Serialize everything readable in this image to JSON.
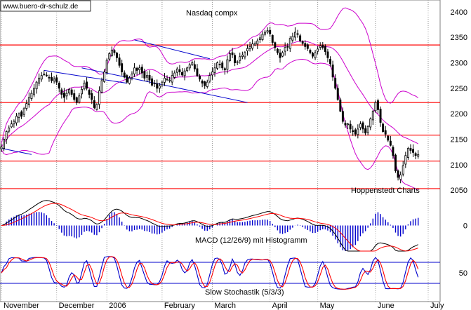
{
  "watermark": "www.buero-dr-schulz.de",
  "chart_data": {
    "type": "candlestick",
    "title": "Nasdaq compx",
    "source_label": "Hoppenstedt Charts",
    "colors": {
      "candle": "#000000",
      "bollinger": "#cc00cc",
      "horizontal_levels": "#ff0000",
      "trendline": "#0000cc",
      "macd_line": "#000000",
      "signal_line": "#ff0000",
      "histogram": "#0000cc",
      "stoch_k": "#0000cc",
      "stoch_d": "#ff0000",
      "stoch_bands": "#0000cc",
      "grid": "#999999"
    },
    "price_panel": {
      "ylim": [
        2035,
        2415
      ],
      "yticks": [
        2050,
        2100,
        2150,
        2200,
        2250,
        2300,
        2350,
        2400
      ],
      "grid": "vertical dotted at month starts",
      "horizontal_levels": [
        2335,
        2222,
        2158,
        2107,
        2053
      ],
      "trendlines": [
        {
          "from": {
            "day": 0,
            "value": 2132
          },
          "to": {
            "day": 12,
            "value": 2120
          }
        },
        {
          "from": {
            "day": 17,
            "value": 2285
          },
          "to": {
            "day": 50,
            "value": 2260
          }
        },
        {
          "from": {
            "day": 32,
            "value": 2290
          },
          "to": {
            "day": 98,
            "value": 2222
          }
        },
        {
          "from": {
            "day": 53,
            "value": 2345
          },
          "to": {
            "day": 83,
            "value": 2308
          }
        }
      ]
    },
    "macd_panel": {
      "label": "MACD (12/26/9) mit Histogramm",
      "yticks": [
        0
      ],
      "ylim": [
        -35,
        35
      ]
    },
    "stoch_panel": {
      "label": "Slow Stochastik (5/3/3)",
      "yticks": [
        50
      ],
      "bands": [
        80,
        20
      ],
      "ylim": [
        0,
        100
      ]
    },
    "x_axis": {
      "months": [
        "November",
        "December",
        "2006",
        "February",
        "March",
        "April",
        "May",
        "June",
        "July"
      ],
      "month_start_days": [
        0,
        22,
        42,
        64,
        84,
        107,
        126,
        149,
        170
      ],
      "total_days": 171
    },
    "close_series": [
      2135,
      2150,
      2165,
      2172,
      2180,
      2185,
      2195,
      2200,
      2195,
      2210,
      2220,
      2232,
      2240,
      2250,
      2262,
      2270,
      2275,
      2278,
      2275,
      2270,
      2265,
      2268,
      2262,
      2250,
      2238,
      2232,
      2240,
      2248,
      2238,
      2228,
      2222,
      2235,
      2248,
      2260,
      2250,
      2238,
      2228,
      2212,
      2218,
      2245,
      2265,
      2282,
      2305,
      2318,
      2325,
      2320,
      2310,
      2295,
      2282,
      2272,
      2262,
      2270,
      2278,
      2290,
      2285,
      2290,
      2280,
      2270,
      2275,
      2266,
      2256,
      2260,
      2250,
      2255,
      2262,
      2270,
      2268,
      2266,
      2275,
      2280,
      2288,
      2282,
      2276,
      2284,
      2290,
      2296,
      2300,
      2288,
      2275,
      2268,
      2260,
      2255,
      2262,
      2275,
      2282,
      2290,
      2300,
      2296,
      2290,
      2286,
      2306,
      2318,
      2316,
      2300,
      2302,
      2312,
      2315,
      2320,
      2328,
      2332,
      2337,
      2338,
      2343,
      2349,
      2356,
      2360,
      2363,
      2357,
      2340,
      2330,
      2320,
      2310,
      2320,
      2330,
      2332,
      2348,
      2352,
      2360,
      2357,
      2343,
      2338,
      2332,
      2328,
      2320,
      2313,
      2320,
      2327,
      2333,
      2330,
      2322,
      2310,
      2298,
      2272,
      2250,
      2228,
      2205,
      2185,
      2178,
      2180,
      2170,
      2165,
      2160,
      2170,
      2180,
      2170,
      2162,
      2175,
      2190,
      2205,
      2222,
      2208,
      2183,
      2165,
      2160,
      2148,
      2138,
      2118,
      2088,
      2075,
      2080,
      2098,
      2118,
      2132,
      2128,
      2124,
      2118,
      2120
    ]
  }
}
